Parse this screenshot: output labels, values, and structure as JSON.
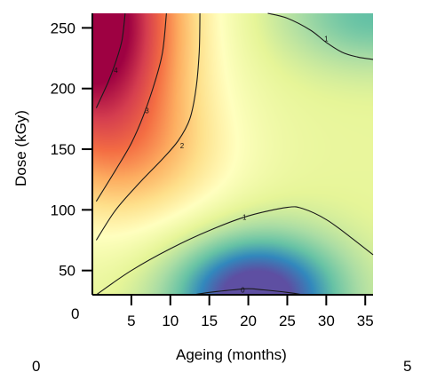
{
  "chart_data": {
    "type": "heatmap",
    "xlabel": "Ageing (months)",
    "ylabel": "Dose (kGy)",
    "x_ticks": [
      5,
      10,
      15,
      20,
      25,
      30,
      35
    ],
    "y_ticks": [
      50,
      100,
      150,
      200,
      250
    ],
    "xlim": [
      0,
      36
    ],
    "ylim": [
      30,
      262
    ],
    "contour_levels": [
      0,
      1,
      2,
      3,
      4
    ],
    "contours": [
      {
        "level": "0",
        "label": "0",
        "label_at": [
          19.3,
          34
        ],
        "points": [
          [
            13,
            30
          ],
          [
            15,
            32
          ],
          [
            18,
            34
          ],
          [
            20,
            35
          ],
          [
            22,
            34
          ],
          [
            25,
            32
          ],
          [
            27,
            30
          ]
        ]
      },
      {
        "level": "1",
        "label": "1",
        "label_at": [
          19.5,
          94
        ],
        "points": [
          [
            0.5,
            30
          ],
          [
            5,
            50
          ],
          [
            10,
            68
          ],
          [
            15,
            83
          ],
          [
            20,
            95
          ],
          [
            25,
            102
          ],
          [
            27,
            101
          ],
          [
            30,
            92
          ],
          [
            33,
            78
          ],
          [
            36,
            63
          ]
        ]
      },
      {
        "level": "1",
        "label": "1",
        "label_at": [
          30,
          241
        ],
        "points": [
          [
            22.5,
            262
          ],
          [
            25,
            258
          ],
          [
            28,
            248
          ],
          [
            30,
            238
          ],
          [
            32,
            230
          ],
          [
            34,
            226
          ],
          [
            36,
            224
          ]
        ]
      },
      {
        "level": "2",
        "label": "2",
        "label_at": [
          11.5,
          153
        ],
        "points": [
          [
            0.5,
            75
          ],
          [
            3,
            100
          ],
          [
            6,
            122
          ],
          [
            9,
            142
          ],
          [
            11,
            157
          ],
          [
            12.5,
            175
          ],
          [
            13.3,
            200
          ],
          [
            13.7,
            230
          ],
          [
            13.8,
            262
          ]
        ]
      },
      {
        "level": "3",
        "label": "3",
        "label_at": [
          7,
          182
        ],
        "points": [
          [
            0.5,
            107
          ],
          [
            3,
            133
          ],
          [
            5,
            155
          ],
          [
            6.5,
            177
          ],
          [
            8,
            205
          ],
          [
            9,
            230
          ],
          [
            9.5,
            262
          ]
        ]
      },
      {
        "level": "4",
        "label": "4",
        "label_at": [
          3,
          215
        ],
        "points": [
          [
            0.5,
            184
          ],
          [
            2,
            205
          ],
          [
            3,
            222
          ],
          [
            3.8,
            240
          ],
          [
            4.2,
            262
          ]
        ]
      }
    ],
    "colormap": "spectral_r",
    "colorbar": {
      "min": -0.6,
      "max": 5
    }
  },
  "stray_labels": {
    "origin_y": "0",
    "bottom_left": "0",
    "bottom_right": "5"
  }
}
